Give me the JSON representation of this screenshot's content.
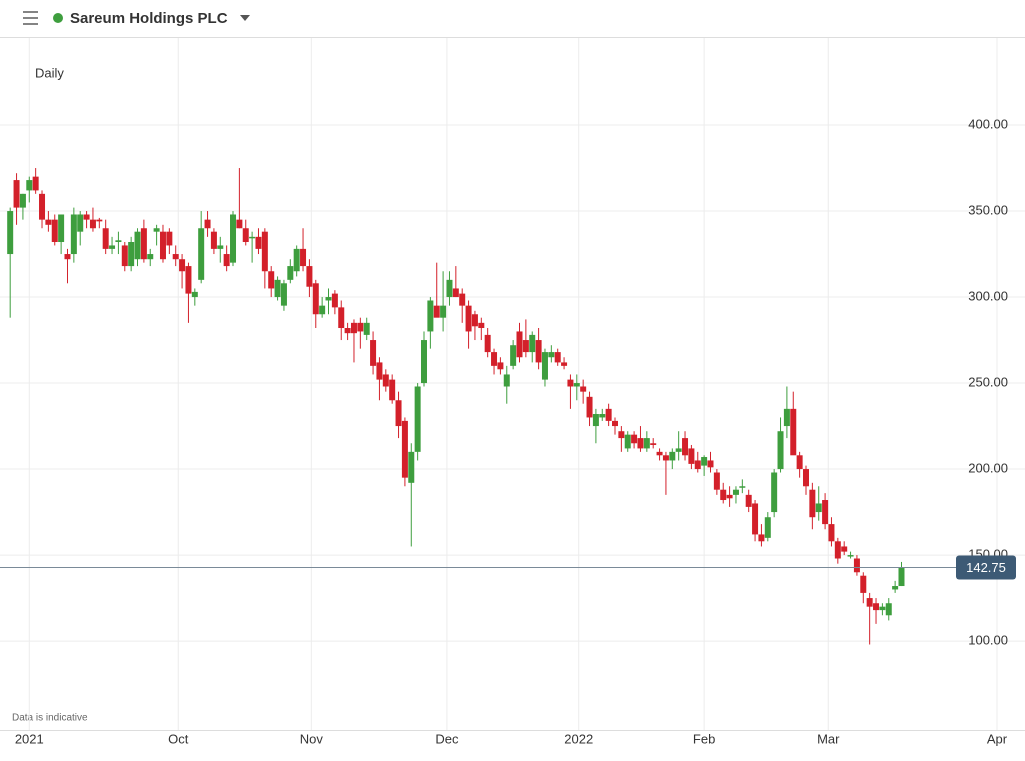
{
  "header": {
    "title": "Sareum Holdings PLC"
  },
  "chart_data": {
    "type": "candlestick",
    "interval_label": "Daily",
    "footnote": "Data is indicative",
    "up_color": "#3e9e3e",
    "down_color": "#d3202a",
    "open": [
      325,
      368,
      352,
      362,
      370,
      360,
      345,
      345,
      332,
      325,
      325,
      338,
      348,
      345,
      345,
      340,
      328,
      332,
      330,
      318,
      322,
      340,
      322,
      338,
      338,
      338,
      325,
      322,
      318,
      300,
      310,
      345,
      338,
      328,
      325,
      320,
      345,
      340,
      335,
      335,
      338,
      315,
      300,
      295,
      310,
      315,
      328,
      318,
      308,
      290,
      298,
      302,
      294,
      282,
      285,
      285,
      278,
      275,
      262,
      255,
      252,
      240,
      228,
      192,
      210,
      250,
      280,
      295,
      288,
      300,
      305,
      302,
      295,
      290,
      285,
      278,
      268,
      262,
      248,
      260,
      280,
      275,
      268,
      275,
      252,
      265,
      268,
      262,
      252,
      248,
      248,
      242,
      225,
      230,
      235,
      228,
      222,
      212,
      220,
      218,
      212,
      215,
      210,
      208,
      205,
      210,
      218,
      212,
      205,
      202,
      205,
      198,
      188,
      185,
      185,
      190,
      185,
      180,
      162,
      160,
      175,
      200,
      225,
      235,
      208,
      200,
      188,
      175,
      182,
      168,
      158,
      155,
      150,
      148,
      138,
      125,
      122,
      118,
      115,
      130,
      132
    ],
    "high": [
      352,
      372,
      360,
      370,
      375,
      362,
      350,
      348,
      348,
      328,
      352,
      350,
      350,
      352,
      346,
      345,
      335,
      338,
      332,
      335,
      340,
      345,
      328,
      342,
      342,
      340,
      330,
      325,
      320,
      305,
      350,
      350,
      340,
      335,
      330,
      350,
      375,
      345,
      338,
      340,
      340,
      318,
      312,
      310,
      322,
      330,
      340,
      322,
      310,
      300,
      305,
      304,
      298,
      285,
      287,
      288,
      288,
      280,
      265,
      258,
      255,
      245,
      230,
      215,
      250,
      280,
      300,
      320,
      315,
      315,
      318,
      305,
      298,
      292,
      288,
      282,
      270,
      265,
      260,
      275,
      285,
      287,
      280,
      282,
      270,
      272,
      270,
      265,
      255,
      255,
      252,
      245,
      235,
      235,
      238,
      230,
      225,
      222,
      222,
      225,
      222,
      218,
      212,
      210,
      212,
      222,
      222,
      214,
      210,
      208,
      210,
      200,
      192,
      190,
      190,
      194,
      188,
      182,
      168,
      175,
      200,
      230,
      248,
      245,
      210,
      202,
      192,
      190,
      186,
      172,
      160,
      158,
      152,
      150,
      140,
      128,
      125,
      122,
      125,
      135,
      146
    ],
    "low": [
      288,
      342,
      345,
      355,
      360,
      340,
      338,
      330,
      325,
      308,
      320,
      330,
      340,
      338,
      340,
      325,
      325,
      325,
      315,
      315,
      318,
      320,
      318,
      330,
      320,
      325,
      318,
      305,
      285,
      295,
      308,
      335,
      325,
      320,
      315,
      318,
      340,
      330,
      320,
      325,
      305,
      300,
      298,
      292,
      308,
      312,
      315,
      300,
      282,
      288,
      290,
      290,
      275,
      275,
      262,
      270,
      275,
      255,
      240,
      245,
      238,
      218,
      190,
      155,
      205,
      248,
      270,
      290,
      280,
      295,
      300,
      285,
      270,
      275,
      275,
      265,
      255,
      255,
      238,
      258,
      262,
      265,
      262,
      258,
      248,
      262,
      260,
      258,
      235,
      240,
      238,
      225,
      215,
      228,
      225,
      220,
      210,
      210,
      212,
      210,
      210,
      212,
      205,
      185,
      200,
      205,
      205,
      200,
      198,
      196,
      198,
      185,
      180,
      178,
      180,
      186,
      175,
      158,
      155,
      158,
      172,
      198,
      218,
      212,
      195,
      185,
      165,
      170,
      165,
      155,
      145,
      150,
      148,
      138,
      122,
      98,
      110,
      115,
      112,
      128,
      132
    ],
    "close": [
      350,
      352,
      360,
      368,
      362,
      345,
      342,
      332,
      348,
      322,
      348,
      348,
      345,
      340,
      344,
      328,
      330,
      333,
      318,
      332,
      338,
      322,
      325,
      340,
      322,
      330,
      322,
      315,
      302,
      303,
      340,
      340,
      328,
      330,
      318,
      348,
      340,
      332,
      335,
      328,
      315,
      305,
      310,
      308,
      318,
      328,
      318,
      306,
      290,
      295,
      300,
      294,
      282,
      279,
      279,
      280,
      285,
      260,
      252,
      248,
      240,
      225,
      195,
      210,
      248,
      275,
      298,
      288,
      295,
      310,
      300,
      295,
      280,
      283,
      282,
      268,
      260,
      258,
      255,
      272,
      265,
      268,
      278,
      262,
      268,
      268,
      262,
      260,
      248,
      250,
      245,
      230,
      232,
      232,
      228,
      225,
      218,
      220,
      215,
      212,
      218,
      214,
      208,
      205,
      210,
      212,
      208,
      203,
      200,
      207,
      201,
      188,
      182,
      183,
      188,
      190,
      178,
      162,
      158,
      172,
      198,
      222,
      235,
      208,
      200,
      190,
      172,
      180,
      168,
      158,
      148,
      152,
      150,
      140,
      128,
      120,
      118,
      120,
      122,
      132,
      142.75
    ],
    "xticks": [
      {
        "value": 3,
        "label": "2021"
      },
      {
        "value": 26.4,
        "label": "Oct"
      },
      {
        "value": 47.3,
        "label": "Nov"
      },
      {
        "value": 68.6,
        "label": "Dec"
      },
      {
        "value": 89.3,
        "label": "2022"
      },
      {
        "value": 109,
        "label": "Feb"
      },
      {
        "value": 128.5,
        "label": "Mar"
      },
      {
        "value": 155,
        "label": "Apr"
      }
    ],
    "xlim": [
      -1.6,
      159.4
    ],
    "ylim": [
      48.3,
      450.6
    ],
    "yticks": [
      {
        "value": 100,
        "label": "100.00"
      },
      {
        "value": 150,
        "label": "150.00"
      },
      {
        "value": 200,
        "label": "200.00"
      },
      {
        "value": 250,
        "label": "250.00"
      },
      {
        "value": 300,
        "label": "300.00"
      },
      {
        "value": 350,
        "label": "350.00"
      },
      {
        "value": 400,
        "label": "400.00"
      }
    ],
    "last_price": {
      "value": 142.75,
      "label": "142.75"
    },
    "grid": true
  }
}
